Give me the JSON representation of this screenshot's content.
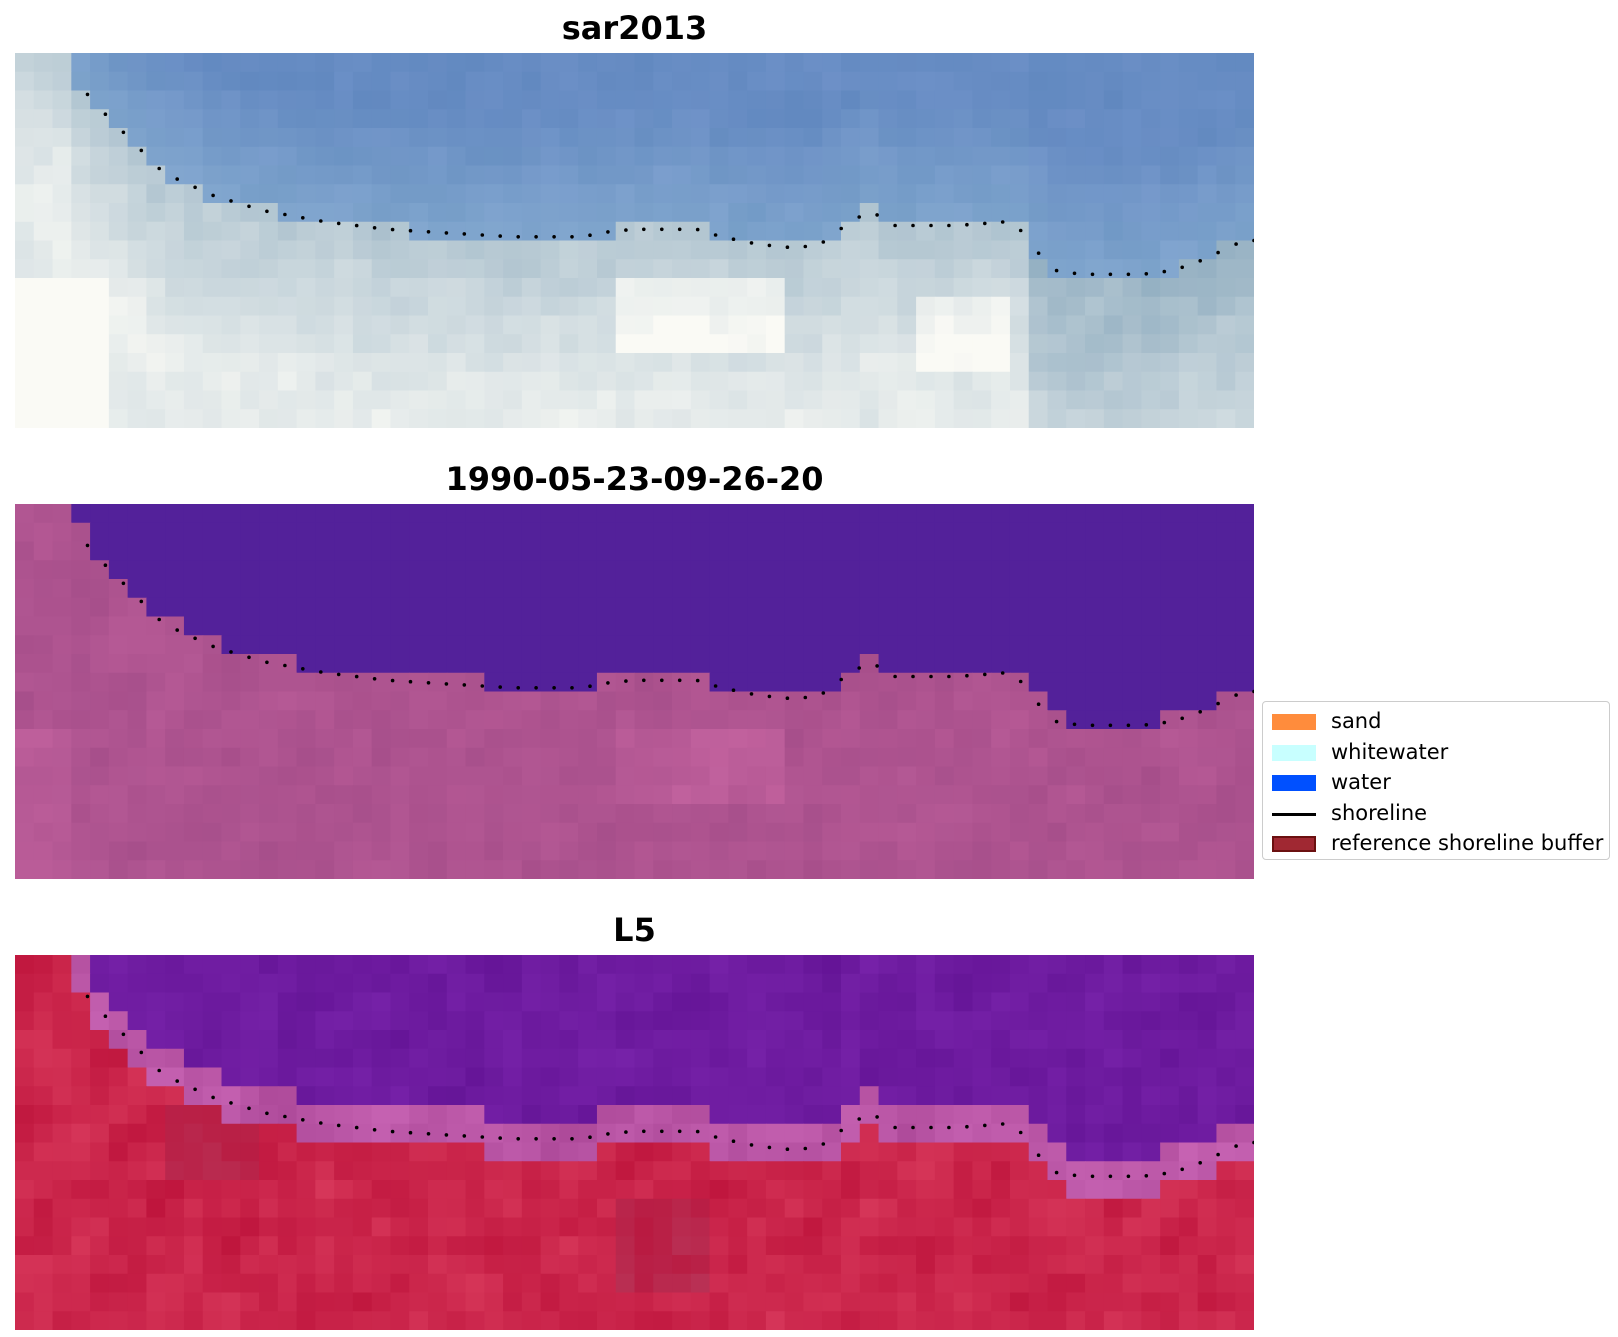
{
  "panels": [
    {
      "title": "sar2013",
      "style": "rgb"
    },
    {
      "title": "1990-05-23-09-26-20",
      "style": "classified"
    },
    {
      "title": "L5",
      "style": "index"
    }
  ],
  "legend": {
    "items": [
      {
        "label": "sand",
        "type": "patch",
        "color": "#ff8c3c",
        "border": "none"
      },
      {
        "label": "whitewater",
        "type": "patch",
        "color": "#c8ffff",
        "border": "none"
      },
      {
        "label": "water",
        "type": "patch",
        "color": "#0050ff",
        "border": "none"
      },
      {
        "label": "shoreline",
        "type": "line",
        "color": "#000000"
      },
      {
        "label": "reference shoreline buffer",
        "type": "patch",
        "color": "#a02832",
        "border": "#6b1010"
      }
    ]
  }
}
